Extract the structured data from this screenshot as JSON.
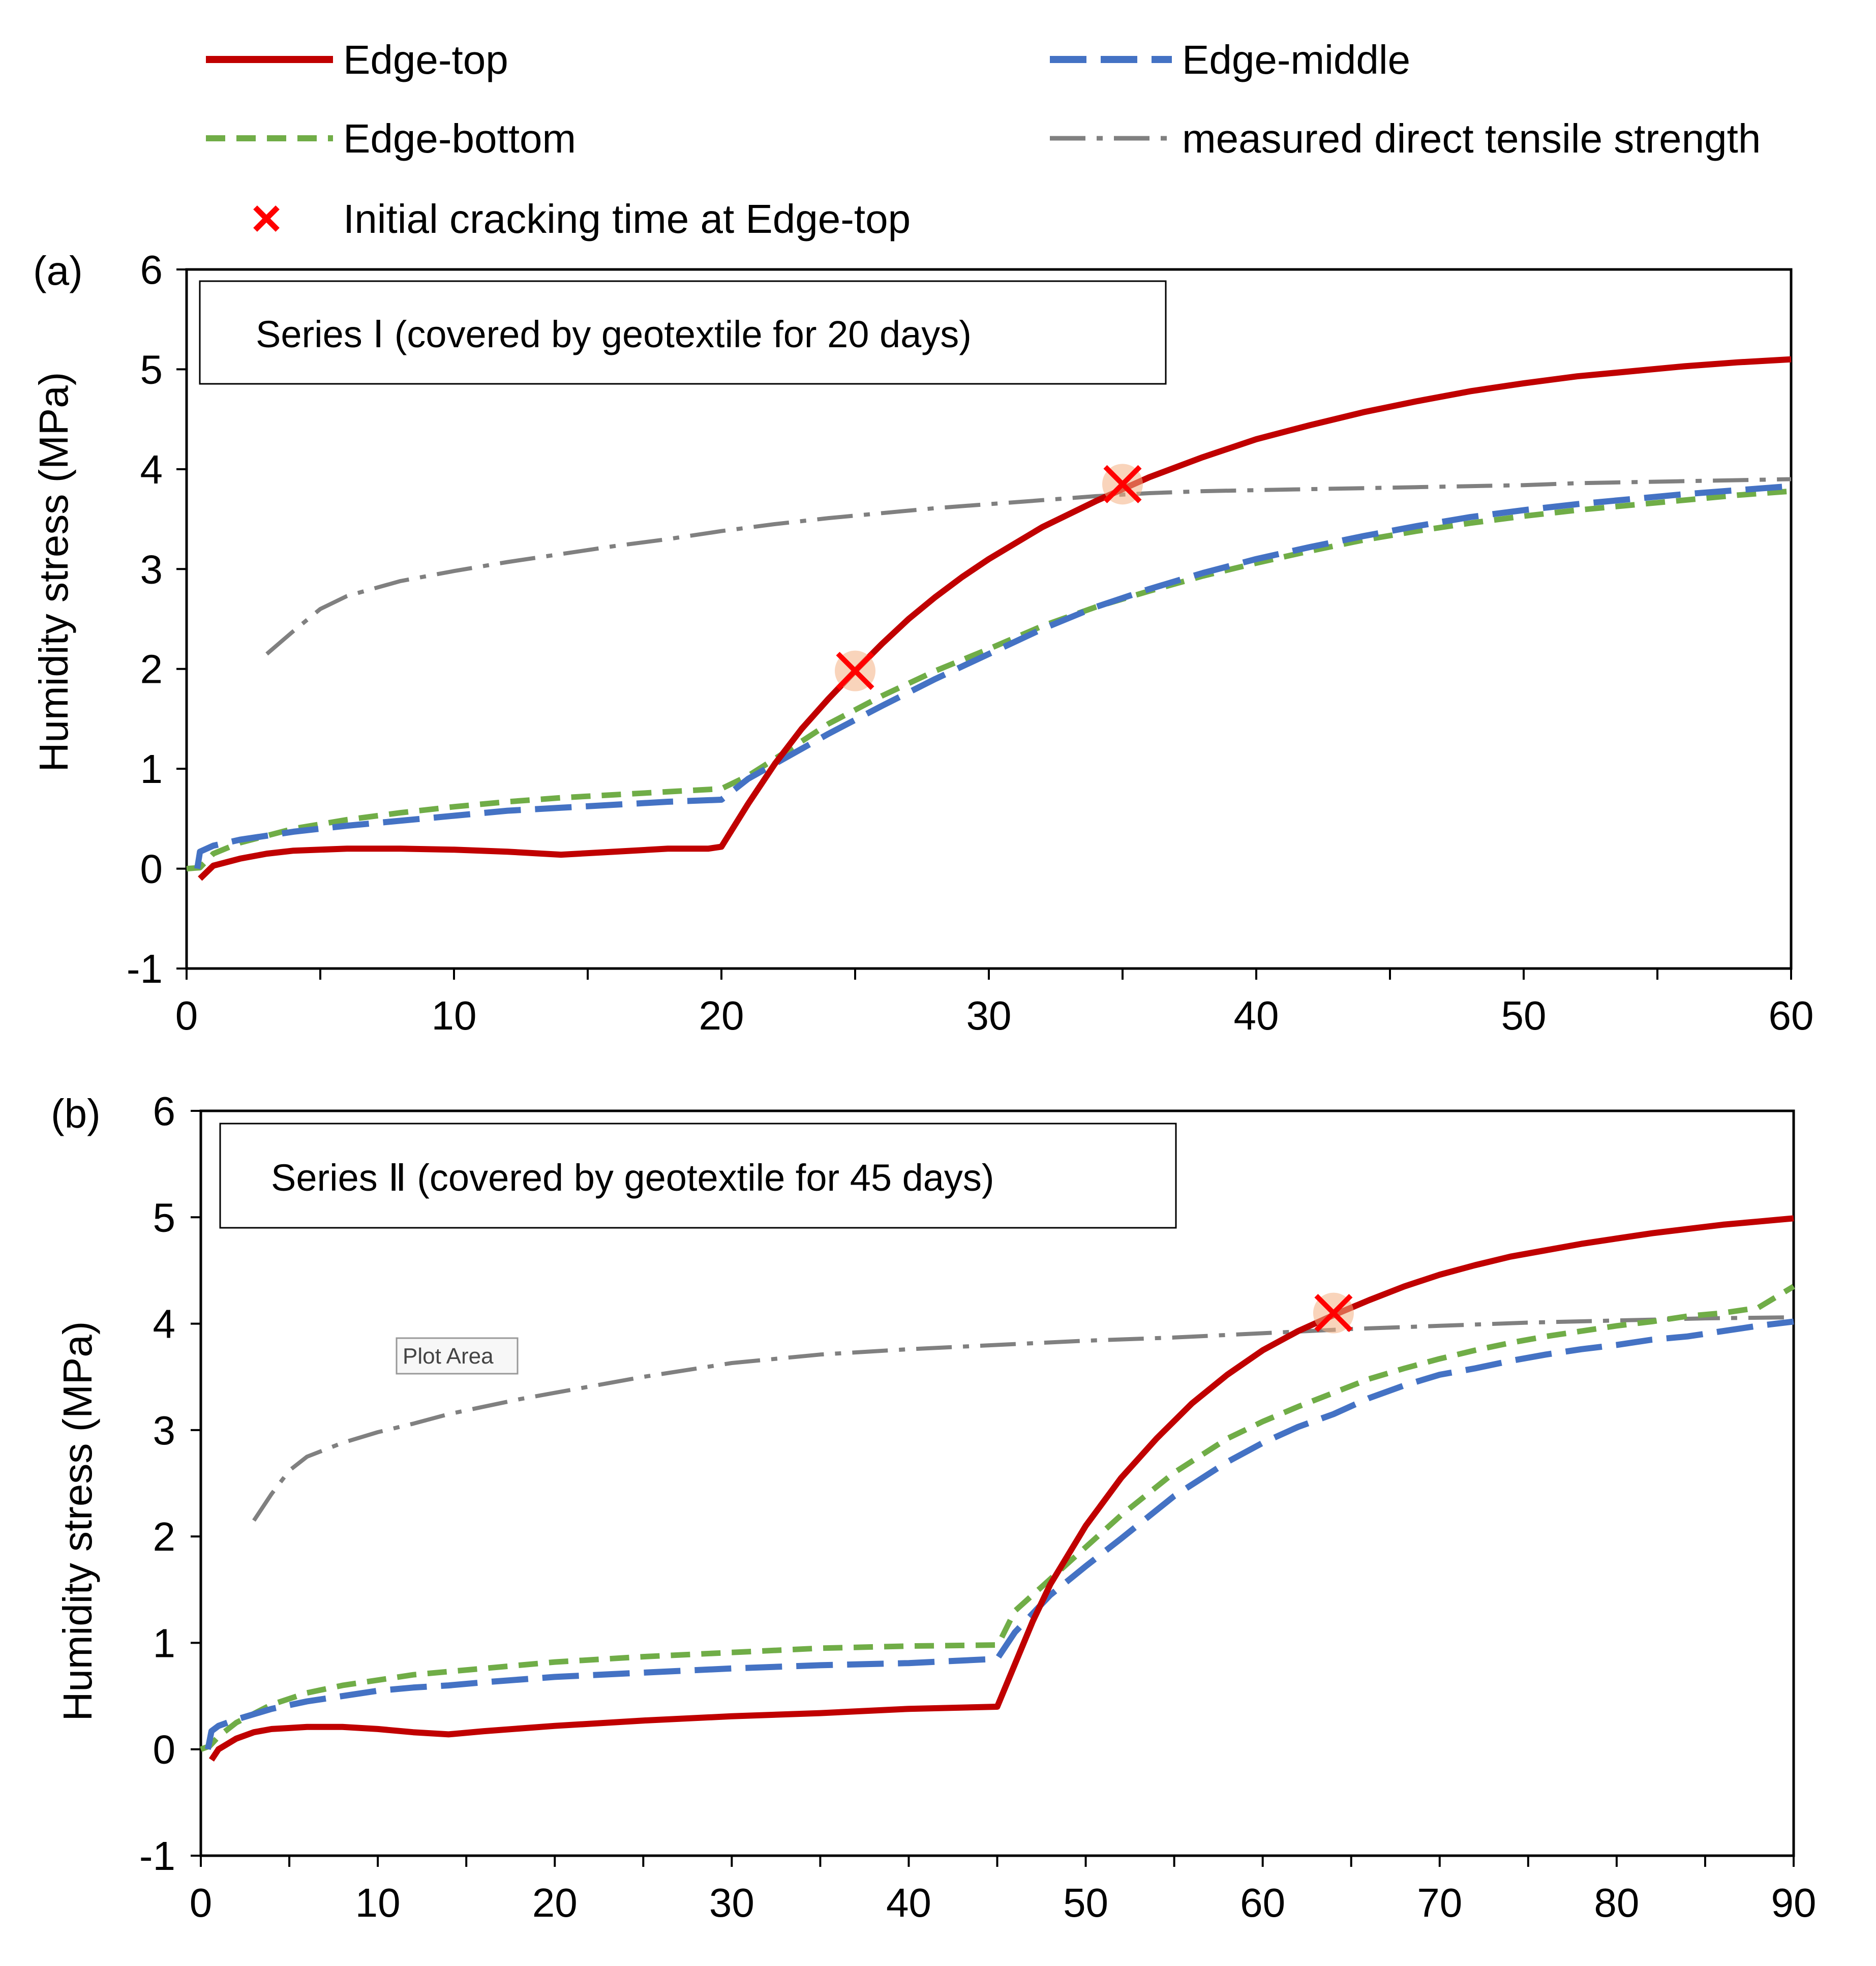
{
  "legend": {
    "items": [
      {
        "key": "edge_top",
        "label": "Edge-top",
        "color": "#C00000",
        "style": "solid"
      },
      {
        "key": "edge_middle",
        "label": "Edge-middle",
        "color": "#4472C4",
        "style": "longdash"
      },
      {
        "key": "edge_bottom",
        "label": "Edge-bottom",
        "color": "#70AD47",
        "style": "dash"
      },
      {
        "key": "tensile",
        "label": "measured direct tensile strength",
        "color": "#808080",
        "style": "dashdot"
      },
      {
        "key": "crack",
        "label": "Initial cracking time at Edge-top",
        "color": "#FF0000",
        "style": "marker"
      }
    ]
  },
  "tooltip": {
    "text": "Plot Area"
  },
  "chart_data": [
    {
      "type": "line",
      "panel_label": "(a)",
      "annotation": "Series Ⅰ  (covered by geotextile for 20 days)",
      "xlabel": "",
      "ylabel": "Humidity stress (MPa)",
      "xlim": [
        0,
        60
      ],
      "ylim": [
        -1,
        6
      ],
      "xticks": [
        0,
        10,
        20,
        30,
        40,
        50,
        60
      ],
      "yticks": [
        -1,
        0,
        1,
        2,
        3,
        4,
        5,
        6
      ],
      "grid": false,
      "series": [
        {
          "key": "edge_top",
          "name": "Edge-top",
          "x": [
            0.5,
            1,
            2,
            3,
            4,
            6,
            8,
            10,
            12,
            14,
            16,
            18,
            19.5,
            20,
            21,
            22,
            23,
            24,
            25,
            26,
            27,
            28,
            29,
            30,
            32,
            34,
            35,
            36,
            38,
            40,
            42,
            44,
            46,
            48,
            50,
            52,
            54,
            56,
            58,
            60
          ],
          "y": [
            -0.1,
            0.03,
            0.1,
            0.15,
            0.18,
            0.2,
            0.2,
            0.19,
            0.17,
            0.14,
            0.17,
            0.2,
            0.2,
            0.22,
            0.65,
            1.05,
            1.4,
            1.7,
            1.98,
            2.25,
            2.5,
            2.72,
            2.92,
            3.1,
            3.42,
            3.68,
            3.8,
            3.92,
            4.12,
            4.3,
            4.44,
            4.57,
            4.68,
            4.78,
            4.86,
            4.93,
            4.98,
            5.03,
            5.07,
            5.1
          ]
        },
        {
          "key": "edge_middle",
          "name": "Edge-middle",
          "x": [
            0.4,
            0.5,
            1,
            2,
            4,
            6,
            8,
            10,
            12,
            14,
            16,
            18,
            20,
            21,
            22,
            24,
            26,
            28,
            30,
            32,
            34,
            36,
            38,
            40,
            42,
            44,
            46,
            48,
            50,
            52,
            54,
            56,
            58,
            60
          ],
          "y": [
            0.0,
            0.17,
            0.23,
            0.29,
            0.37,
            0.43,
            0.48,
            0.53,
            0.58,
            0.61,
            0.64,
            0.67,
            0.69,
            0.9,
            1.05,
            1.35,
            1.63,
            1.9,
            2.15,
            2.4,
            2.62,
            2.8,
            2.96,
            3.1,
            3.22,
            3.33,
            3.43,
            3.52,
            3.59,
            3.65,
            3.7,
            3.75,
            3.79,
            3.83
          ]
        },
        {
          "key": "edge_bottom",
          "name": "Edge-bottom",
          "x": [
            0,
            0.5,
            1,
            2,
            4,
            6,
            8,
            10,
            12,
            14,
            16,
            18,
            20,
            21,
            22,
            24,
            26,
            28,
            30,
            32,
            34,
            36,
            38,
            40,
            42,
            44,
            46,
            48,
            50,
            52,
            54,
            56,
            58,
            60
          ],
          "y": [
            0.0,
            0.01,
            0.15,
            0.26,
            0.4,
            0.49,
            0.56,
            0.62,
            0.67,
            0.71,
            0.74,
            0.77,
            0.8,
            0.93,
            1.1,
            1.45,
            1.73,
            1.98,
            2.2,
            2.43,
            2.62,
            2.78,
            2.93,
            3.06,
            3.18,
            3.29,
            3.38,
            3.46,
            3.53,
            3.59,
            3.64,
            3.69,
            3.74,
            3.78
          ]
        },
        {
          "key": "tensile",
          "name": "measured direct tensile strength",
          "x": [
            3,
            4,
            5,
            6,
            8,
            10,
            12,
            14,
            16,
            18,
            20,
            22,
            24,
            26,
            28,
            30,
            32,
            34,
            36,
            38,
            40,
            42,
            44,
            46,
            48,
            50,
            52,
            54,
            56,
            58,
            60
          ],
          "y": [
            2.15,
            2.38,
            2.6,
            2.73,
            2.88,
            2.98,
            3.07,
            3.15,
            3.23,
            3.3,
            3.38,
            3.45,
            3.51,
            3.56,
            3.61,
            3.65,
            3.69,
            3.73,
            3.76,
            3.78,
            3.79,
            3.8,
            3.81,
            3.82,
            3.83,
            3.84,
            3.86,
            3.87,
            3.88,
            3.89,
            3.9
          ]
        }
      ],
      "markers": [
        {
          "x": 25,
          "y": 1.98
        },
        {
          "x": 35,
          "y": 3.85
        }
      ]
    },
    {
      "type": "line",
      "panel_label": "(b)",
      "annotation": "Series Ⅱ (covered by geotextile for 45 days)",
      "xlabel": "",
      "ylabel": "Humidity stress (MPa)",
      "xlim": [
        0,
        90
      ],
      "ylim": [
        -1,
        6
      ],
      "xticks": [
        0,
        10,
        20,
        30,
        40,
        50,
        60,
        70,
        80,
        90
      ],
      "yticks": [
        -1,
        0,
        1,
        2,
        3,
        4,
        5,
        6
      ],
      "grid": false,
      "series": [
        {
          "key": "edge_top",
          "name": "Edge-top",
          "x": [
            0.6,
            1,
            2,
            3,
            4,
            5,
            6,
            8,
            10,
            12,
            14,
            16,
            20,
            25,
            30,
            35,
            40,
            45,
            46,
            47,
            48,
            50,
            52,
            54,
            56,
            58,
            60,
            62,
            64,
            66,
            68,
            70,
            72,
            74,
            76,
            78,
            80,
            82,
            84,
            86,
            88,
            90
          ],
          "y": [
            -0.1,
            0.0,
            0.1,
            0.16,
            0.19,
            0.2,
            0.21,
            0.21,
            0.19,
            0.16,
            0.14,
            0.17,
            0.22,
            0.27,
            0.31,
            0.34,
            0.38,
            0.4,
            0.8,
            1.2,
            1.55,
            2.1,
            2.55,
            2.92,
            3.25,
            3.52,
            3.75,
            3.93,
            4.08,
            4.22,
            4.35,
            4.46,
            4.55,
            4.63,
            4.69,
            4.75,
            4.8,
            4.85,
            4.89,
            4.93,
            4.96,
            4.99
          ]
        },
        {
          "key": "edge_middle",
          "name": "Edge-middle",
          "x": [
            0.4,
            0.6,
            1,
            2,
            4,
            6,
            8,
            10,
            12,
            14,
            16,
            20,
            25,
            30,
            35,
            40,
            45,
            46,
            48,
            50,
            52,
            55,
            58,
            60,
            62,
            64,
            66,
            68,
            70,
            72,
            74,
            76,
            78,
            80,
            82,
            84,
            86,
            88,
            90
          ],
          "y": [
            0.0,
            0.17,
            0.22,
            0.28,
            0.38,
            0.45,
            0.5,
            0.55,
            0.58,
            0.6,
            0.63,
            0.68,
            0.72,
            0.76,
            0.79,
            0.81,
            0.85,
            1.1,
            1.45,
            1.72,
            1.98,
            2.38,
            2.7,
            2.88,
            3.03,
            3.15,
            3.3,
            3.42,
            3.52,
            3.58,
            3.65,
            3.71,
            3.76,
            3.8,
            3.85,
            3.88,
            3.93,
            3.98,
            4.02
          ]
        },
        {
          "key": "edge_bottom",
          "name": "Edge-bottom",
          "x": [
            0,
            0.5,
            1,
            2,
            4,
            6,
            8,
            10,
            12,
            14,
            16,
            20,
            25,
            30,
            35,
            40,
            45,
            45.1,
            46,
            48,
            50,
            52,
            55,
            58,
            60,
            62,
            64,
            66,
            68,
            70,
            72,
            74,
            76,
            78,
            80,
            82,
            84,
            86,
            88,
            90
          ],
          "y": [
            0.0,
            0.03,
            0.12,
            0.25,
            0.42,
            0.53,
            0.6,
            0.65,
            0.7,
            0.73,
            0.76,
            0.82,
            0.87,
            0.91,
            0.95,
            0.97,
            0.98,
            1.0,
            1.3,
            1.6,
            1.9,
            2.2,
            2.6,
            2.92,
            3.08,
            3.22,
            3.35,
            3.48,
            3.58,
            3.67,
            3.75,
            3.82,
            3.88,
            3.93,
            3.98,
            4.02,
            4.07,
            4.1,
            4.15,
            4.35
          ]
        },
        {
          "key": "tensile",
          "name": "measured direct tensile strength",
          "x": [
            3,
            4,
            5,
            6,
            8,
            10,
            12,
            14,
            16,
            18,
            20,
            25,
            30,
            35,
            40,
            45,
            50,
            55,
            60,
            65,
            70,
            75,
            80,
            85,
            90
          ],
          "y": [
            2.15,
            2.4,
            2.62,
            2.75,
            2.88,
            2.98,
            3.06,
            3.15,
            3.22,
            3.29,
            3.35,
            3.5,
            3.63,
            3.71,
            3.76,
            3.8,
            3.84,
            3.87,
            3.91,
            3.95,
            3.98,
            4.01,
            4.03,
            4.05,
            4.06
          ]
        }
      ],
      "markers": [
        {
          "x": 64,
          "y": 4.1
        }
      ]
    }
  ]
}
